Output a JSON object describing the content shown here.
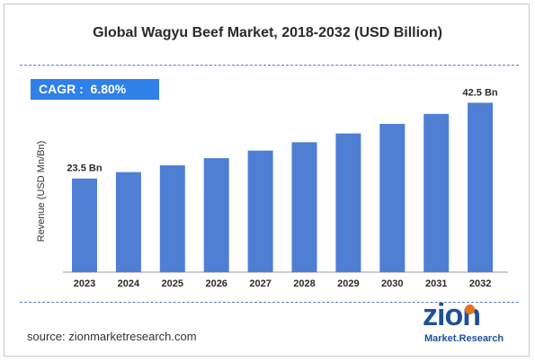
{
  "chart_data": {
    "type": "bar",
    "title": "Global Wagyu Beef Market, 2018-2032 (USD Billion)",
    "ylabel": "Revenue (USD Mn/Bn)",
    "xlabel": "",
    "categories": [
      "2023",
      "2024",
      "2025",
      "2026",
      "2027",
      "2028",
      "2029",
      "2030",
      "2031",
      "2032"
    ],
    "values": [
      23.5,
      25.1,
      26.8,
      28.6,
      30.5,
      32.6,
      34.8,
      37.2,
      39.7,
      42.5
    ],
    "data_labels": [
      {
        "category": "2023",
        "text": "23.5 Bn"
      },
      {
        "category": "2032",
        "text": "42.5 Bn"
      }
    ],
    "ylim": [
      0,
      48
    ],
    "grid": false,
    "bar_color": "#4e7fd5",
    "cagr": "CAGR :  6.80%"
  },
  "source": "source: zionmarketresearch.com",
  "logo": {
    "line1": "zion",
    "line2": "Market.Research",
    "accent": "#e8741c",
    "color": "#1f4f9c"
  }
}
